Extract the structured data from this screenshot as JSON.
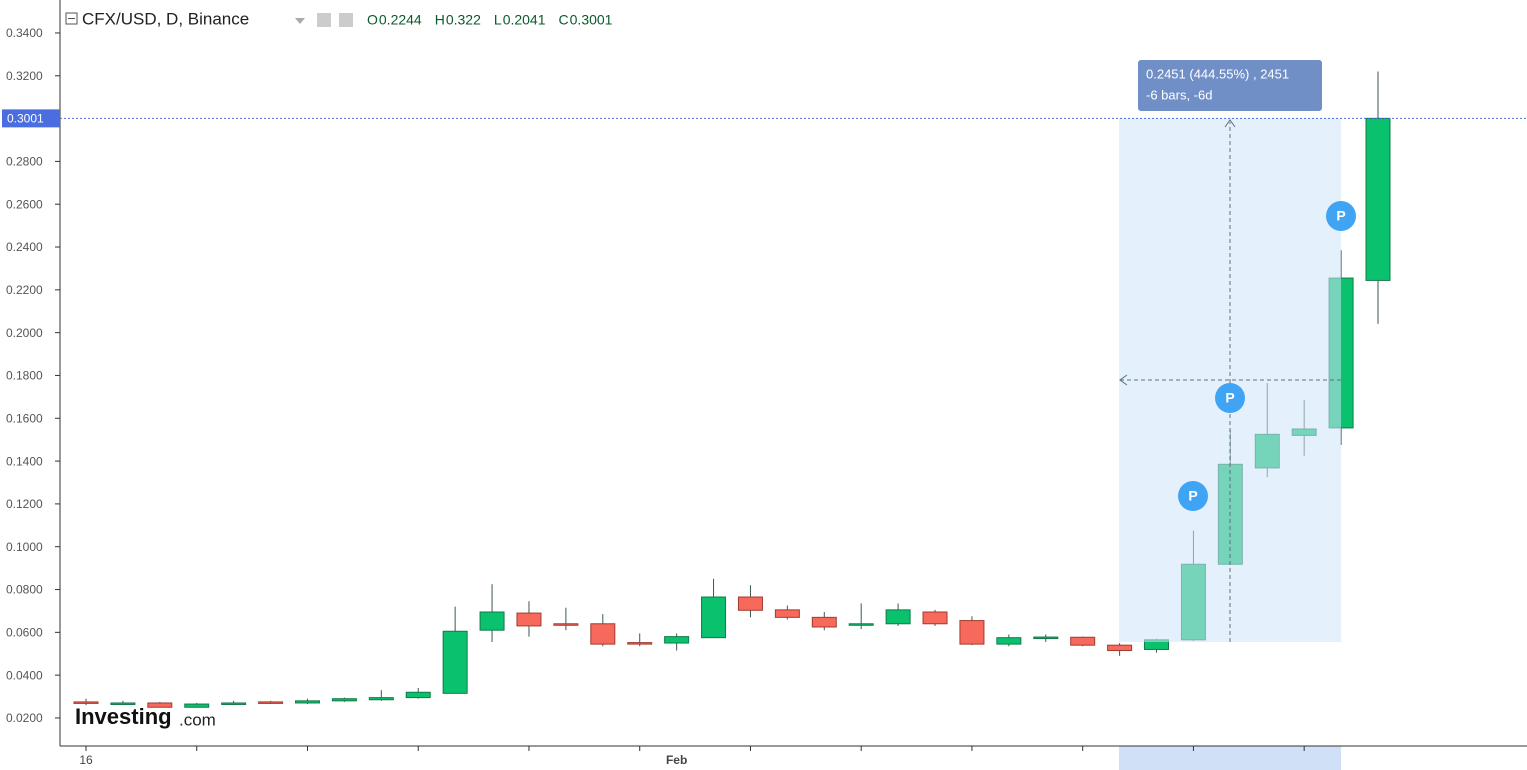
{
  "chart_data": {
    "type": "candlestick",
    "title": "CFX/USD, D, Binance",
    "header_ohlc": [
      {
        "label": "O",
        "value": 0.2244
      },
      {
        "label": "H",
        "value": 0.322
      },
      {
        "label": "L",
        "value": 0.2041
      },
      {
        "label": "C",
        "value": 0.3001
      }
    ],
    "categories": [
      "16",
      null,
      null,
      null,
      null,
      null,
      null,
      null,
      null,
      null,
      null,
      null,
      null,
      null,
      null,
      null,
      "Feb",
      null,
      null,
      null,
      null,
      null,
      null,
      null,
      null,
      null,
      null,
      null,
      null,
      null,
      null,
      null,
      null,
      null,
      null,
      null
    ],
    "open": [
      0.0275,
      0.0268,
      0.027,
      0.025,
      0.0265,
      0.0275,
      0.027,
      0.028,
      0.0285,
      0.0295,
      0.0315,
      0.061,
      0.069,
      0.064,
      0.064,
      0.0552,
      0.055,
      0.0575,
      0.0765,
      0.0705,
      0.067,
      0.0635,
      0.064,
      0.0695,
      0.0655,
      0.0545,
      0.0573,
      0.0577,
      0.054,
      0.052,
      0.0565,
      0.0918,
      0.1368,
      0.152,
      0.1555,
      0.2244
    ],
    "high": [
      0.029,
      0.028,
      0.0275,
      0.027,
      0.028,
      0.028,
      0.029,
      0.0295,
      0.033,
      0.034,
      0.072,
      0.0825,
      0.0745,
      0.0715,
      0.0685,
      0.0595,
      0.0595,
      0.085,
      0.082,
      0.0725,
      0.0695,
      0.0735,
      0.0735,
      0.0705,
      0.0675,
      0.059,
      0.059,
      0.058,
      0.055,
      0.057,
      0.1075,
      0.1545,
      0.1765,
      0.1685,
      0.2385,
      0.322
    ],
    "low": [
      0.026,
      0.026,
      0.025,
      0.025,
      0.026,
      0.0265,
      0.0265,
      0.0275,
      0.028,
      0.029,
      0.0315,
      0.0555,
      0.058,
      0.061,
      0.0535,
      0.0535,
      0.0515,
      0.0575,
      0.067,
      0.066,
      0.061,
      0.0615,
      0.063,
      0.063,
      0.054,
      0.0535,
      0.0555,
      0.0535,
      0.049,
      0.0505,
      0.056,
      0.0918,
      0.1325,
      0.1425,
      0.1475,
      0.2041
    ],
    "close": [
      0.027,
      0.027,
      0.025,
      0.0265,
      0.027,
      0.027,
      0.028,
      0.029,
      0.0295,
      0.032,
      0.0605,
      0.0695,
      0.063,
      0.0637,
      0.0545,
      0.0548,
      0.058,
      0.0765,
      0.0703,
      0.067,
      0.0625,
      0.064,
      0.0705,
      0.064,
      0.0545,
      0.0575,
      0.0578,
      0.054,
      0.0515,
      0.0565,
      0.0918,
      0.1385,
      0.1525,
      0.155,
      0.2255,
      0.3001
    ],
    "up_color": "#0ac26d",
    "down_color": "#f7695a",
    "ylim": [
      0.0069,
      0.3554
    ],
    "yticks": [
      {
        "value": 0.02,
        "label": "0.0200"
      },
      {
        "value": 0.04,
        "label": "0.0400"
      },
      {
        "value": 0.06,
        "label": "0.0600"
      },
      {
        "value": 0.08,
        "label": "0.0800"
      },
      {
        "value": 0.1,
        "label": "0.1000"
      },
      {
        "value": 0.12,
        "label": "0.1200"
      },
      {
        "value": 0.14,
        "label": "0.1400"
      },
      {
        "value": 0.16,
        "label": "0.1600"
      },
      {
        "value": 0.18,
        "label": "0.1800"
      },
      {
        "value": 0.2,
        "label": "0.2000"
      },
      {
        "value": 0.22,
        "label": "0.2200"
      },
      {
        "value": 0.24,
        "label": "0.2400"
      },
      {
        "value": 0.26,
        "label": "0.2600"
      },
      {
        "value": 0.28,
        "label": "0.2800"
      },
      {
        "value": 0.3,
        "label": "0.3000"
      },
      {
        "value": 0.32,
        "label": "0.3200"
      },
      {
        "value": 0.34,
        "label": "0.3400"
      }
    ],
    "measure_text": [
      "0.2451 (444.55%) , 2451",
      "-6 bars, -6d"
    ],
    "markers": [
      "P",
      "P",
      "P"
    ],
    "logo": [
      "Investing",
      ".com"
    ]
  }
}
